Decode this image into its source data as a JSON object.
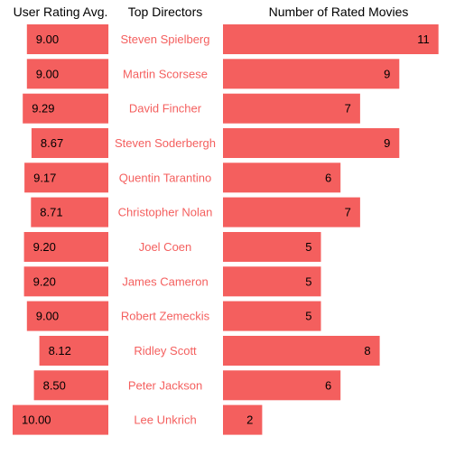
{
  "chart_data": {
    "type": "bar",
    "left_header": "User Rating Avg.",
    "center_header": "Top Directors",
    "right_header": "Number of Rated Movies",
    "bar_color": "#f45f5e",
    "name_color": "#f45f5e",
    "directors": [
      "Steven Spielberg",
      "Martin Scorsese",
      "David Fincher",
      "Steven Soderbergh",
      "Quentin Tarantino",
      "Christopher Nolan",
      "Joel Coen",
      "James Cameron",
      "Robert Zemeckis",
      "Ridley Scott",
      "Peter Jackson",
      "Lee Unkrich"
    ],
    "series": [
      {
        "values": [
          9.0,
          9.0,
          9.29,
          8.67,
          9.17,
          8.71,
          9.2,
          9.2,
          9.0,
          8.12,
          8.5,
          10.0
        ],
        "labels": [
          "9.00",
          "9.00",
          "9.29",
          "8.67",
          "9.17",
          "8.71",
          "9.20",
          "9.20",
          "9.00",
          "8.12",
          "8.50",
          "10.00"
        ]
      },
      {
        "values": [
          11,
          9,
          7,
          9,
          6,
          7,
          5,
          5,
          5,
          8,
          6,
          2
        ],
        "labels": [
          "11",
          "9",
          "7",
          "9",
          "6",
          "7",
          "5",
          "5",
          "5",
          "8",
          "6",
          "2"
        ]
      }
    ]
  }
}
